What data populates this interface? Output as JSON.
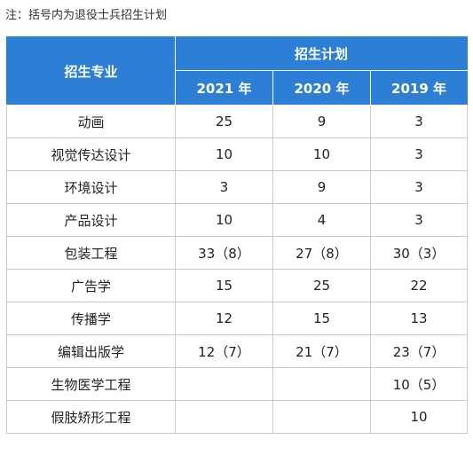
{
  "note": "注：括号内为退役士兵招生计划",
  "table": {
    "header_major": "招生专业",
    "header_group": "招生计划",
    "years": [
      "2021 年",
      "2020 年",
      "2019 年"
    ],
    "rows": [
      {
        "major": "动画",
        "values": [
          "25",
          "9",
          "3"
        ]
      },
      {
        "major": "视觉传达设计",
        "values": [
          "10",
          "10",
          "3"
        ]
      },
      {
        "major": "环境设计",
        "values": [
          "3",
          "9",
          "3"
        ]
      },
      {
        "major": "产品设计",
        "values": [
          "10",
          "4",
          "3"
        ]
      },
      {
        "major": "包装工程",
        "values": [
          "33（8）",
          "27（8）",
          "30（3）"
        ]
      },
      {
        "major": "广告学",
        "values": [
          "15",
          "25",
          "22"
        ]
      },
      {
        "major": "传播学",
        "values": [
          "12",
          "15",
          "13"
        ]
      },
      {
        "major": "编辑出版学",
        "values": [
          "12（7）",
          "21（7）",
          "23（7）"
        ]
      },
      {
        "major": "生物医学工程",
        "values": [
          "",
          "",
          "10（5）"
        ]
      },
      {
        "major": "假肢矫形工程",
        "values": [
          "",
          "",
          "10"
        ]
      }
    ]
  },
  "colors": {
    "header_bg": "#2d7fd6",
    "header_text": "#ffffff",
    "grid_line": "#c8c8c8"
  }
}
